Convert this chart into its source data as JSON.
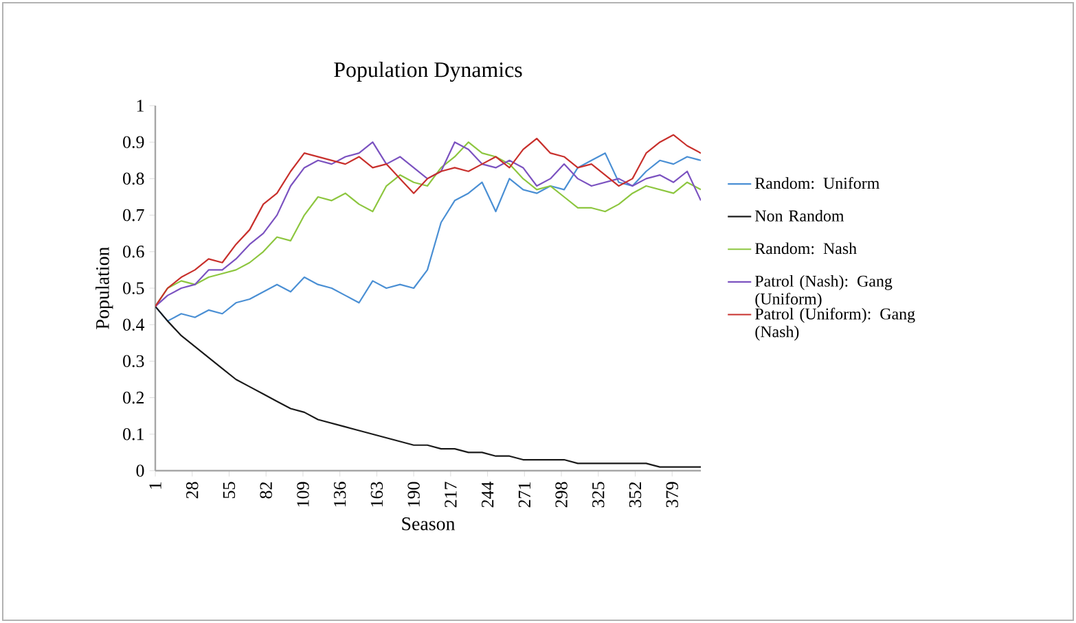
{
  "chart_data": {
    "type": "line",
    "title": "Population Dynamics",
    "xlabel": "Season",
    "ylabel": "Population",
    "x": [
      1,
      10,
      20,
      30,
      40,
      50,
      60,
      70,
      80,
      90,
      100,
      110,
      120,
      130,
      140,
      150,
      160,
      170,
      180,
      190,
      200,
      210,
      220,
      230,
      240,
      250,
      260,
      270,
      280,
      290,
      300,
      310,
      320,
      330,
      340,
      350,
      360,
      370,
      380,
      390,
      400
    ],
    "xlim": [
      1,
      400
    ],
    "xticks": [
      1,
      28,
      55,
      82,
      109,
      136,
      163,
      190,
      217,
      244,
      271,
      298,
      325,
      352,
      379
    ],
    "ylim": [
      0,
      1
    ],
    "yticks": [
      0,
      0.1,
      0.2,
      0.3,
      0.4,
      0.5,
      0.6,
      0.7,
      0.8,
      0.9,
      1
    ],
    "legend": "right",
    "grid": false,
    "marker": "none",
    "series": [
      {
        "name": "Random: Uniform",
        "color": "#4a8fd4",
        "values": [
          0.45,
          0.41,
          0.43,
          0.42,
          0.44,
          0.43,
          0.46,
          0.47,
          0.49,
          0.51,
          0.49,
          0.53,
          0.51,
          0.5,
          0.48,
          0.46,
          0.52,
          0.5,
          0.51,
          0.5,
          0.55,
          0.68,
          0.74,
          0.76,
          0.79,
          0.71,
          0.8,
          0.77,
          0.76,
          0.78,
          0.77,
          0.83,
          0.85,
          0.87,
          0.79,
          0.78,
          0.82,
          0.85,
          0.84,
          0.86,
          0.85
        ]
      },
      {
        "name": "Non Random",
        "color": "#1a1a1a",
        "values": [
          0.45,
          0.41,
          0.37,
          0.34,
          0.31,
          0.28,
          0.25,
          0.23,
          0.21,
          0.19,
          0.17,
          0.16,
          0.14,
          0.13,
          0.12,
          0.11,
          0.1,
          0.09,
          0.08,
          0.07,
          0.07,
          0.06,
          0.06,
          0.05,
          0.05,
          0.04,
          0.04,
          0.03,
          0.03,
          0.03,
          0.03,
          0.02,
          0.02,
          0.02,
          0.02,
          0.02,
          0.02,
          0.01,
          0.01,
          0.01,
          0.01
        ]
      },
      {
        "name": "Random: Nash",
        "color": "#8dc63f",
        "values": [
          0.45,
          0.5,
          0.52,
          0.51,
          0.53,
          0.54,
          0.55,
          0.57,
          0.6,
          0.64,
          0.63,
          0.7,
          0.75,
          0.74,
          0.76,
          0.73,
          0.71,
          0.78,
          0.81,
          0.79,
          0.78,
          0.83,
          0.86,
          0.9,
          0.87,
          0.86,
          0.84,
          0.8,
          0.77,
          0.78,
          0.75,
          0.72,
          0.72,
          0.71,
          0.73,
          0.76,
          0.78,
          0.77,
          0.76,
          0.79,
          0.77
        ]
      },
      {
        "name": "Patrol (Nash): Gang (Uniform)",
        "color": "#7b52c0",
        "values": [
          0.45,
          0.48,
          0.5,
          0.51,
          0.55,
          0.55,
          0.58,
          0.62,
          0.65,
          0.7,
          0.78,
          0.83,
          0.85,
          0.84,
          0.86,
          0.87,
          0.9,
          0.84,
          0.86,
          0.83,
          0.8,
          0.82,
          0.9,
          0.88,
          0.84,
          0.83,
          0.85,
          0.83,
          0.78,
          0.8,
          0.84,
          0.8,
          0.78,
          0.79,
          0.8,
          0.78,
          0.8,
          0.81,
          0.79,
          0.82,
          0.74
        ]
      },
      {
        "name": "Patrol (Uniform): Gang (Nash)",
        "color": "#c8302c",
        "values": [
          0.45,
          0.5,
          0.53,
          0.55,
          0.58,
          0.57,
          0.62,
          0.66,
          0.73,
          0.76,
          0.82,
          0.87,
          0.86,
          0.85,
          0.84,
          0.86,
          0.83,
          0.84,
          0.8,
          0.76,
          0.8,
          0.82,
          0.83,
          0.82,
          0.84,
          0.86,
          0.83,
          0.88,
          0.91,
          0.87,
          0.86,
          0.83,
          0.84,
          0.81,
          0.78,
          0.8,
          0.87,
          0.9,
          0.92,
          0.89,
          0.87
        ]
      }
    ]
  }
}
